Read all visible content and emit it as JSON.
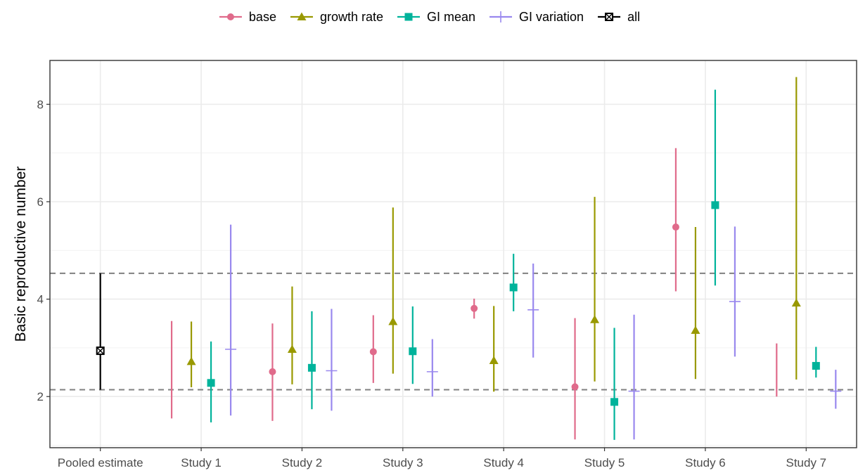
{
  "chart_data": {
    "type": "scatter",
    "title": "",
    "xlabel": "",
    "ylabel": "Basic reproductive number",
    "categories": [
      "Pooled estimate",
      "Study 1",
      "Study 2",
      "Study 3",
      "Study 4",
      "Study 5",
      "Study 6",
      "Study 7"
    ],
    "ylim": [
      0.95,
      8.9
    ],
    "yticks": [
      2,
      4,
      6,
      8
    ],
    "grid": true,
    "legend_position": "top",
    "reference_lines": [
      2.14,
      4.53
    ],
    "series": [
      {
        "name": "base",
        "color": "#e06b8b",
        "marker": "circle",
        "points": [
          {
            "category": "Study 1",
            "lower": 1.55,
            "upper": 3.55
          },
          {
            "category": "Study 2",
            "value": 2.51,
            "lower": 1.5,
            "upper": 3.5
          },
          {
            "category": "Study 3",
            "value": 2.92,
            "lower": 2.28,
            "upper": 3.67
          },
          {
            "category": "Study 4",
            "value": 3.81,
            "lower": 3.6,
            "upper": 4.01
          },
          {
            "category": "Study 5",
            "value": 2.2,
            "lower": 1.12,
            "upper": 3.61
          },
          {
            "category": "Study 6",
            "value": 5.48,
            "lower": 4.16,
            "upper": 7.1
          },
          {
            "category": "Study 7",
            "lower": 2.0,
            "upper": 3.09
          }
        ]
      },
      {
        "name": "growth rate",
        "color": "#999900",
        "marker": "triangle",
        "points": [
          {
            "category": "Study 1",
            "value": 2.72,
            "lower": 2.19,
            "upper": 3.54
          },
          {
            "category": "Study 2",
            "value": 2.97,
            "lower": 2.25,
            "upper": 4.26
          },
          {
            "category": "Study 3",
            "value": 3.54,
            "lower": 2.47,
            "upper": 5.88
          },
          {
            "category": "Study 4",
            "value": 2.74,
            "lower": 2.1,
            "upper": 3.86
          },
          {
            "category": "Study 5",
            "value": 3.58,
            "lower": 2.31,
            "upper": 6.1
          },
          {
            "category": "Study 6",
            "value": 3.36,
            "lower": 2.36,
            "upper": 5.48
          },
          {
            "category": "Study 7",
            "value": 3.92,
            "lower": 2.35,
            "upper": 8.56
          }
        ]
      },
      {
        "name": "GI mean",
        "color": "#00b39b",
        "marker": "square",
        "points": [
          {
            "category": "Study 1",
            "value": 2.28,
            "lower": 1.47,
            "upper": 3.13
          },
          {
            "category": "Study 2",
            "value": 2.59,
            "lower": 1.74,
            "upper": 3.75
          },
          {
            "category": "Study 3",
            "value": 2.93,
            "lower": 2.26,
            "upper": 3.85
          },
          {
            "category": "Study 4",
            "value": 4.24,
            "lower": 3.75,
            "upper": 4.93
          },
          {
            "category": "Study 5",
            "value": 1.89,
            "lower": 1.11,
            "upper": 3.41
          },
          {
            "category": "Study 6",
            "value": 5.93,
            "lower": 4.28,
            "upper": 8.3
          },
          {
            "category": "Study 7",
            "value": 2.63,
            "lower": 2.39,
            "upper": 3.02
          }
        ]
      },
      {
        "name": "GI variation",
        "color": "#9988ee",
        "marker": "plus",
        "points": [
          {
            "category": "Study 1",
            "value": 2.97,
            "lower": 1.61,
            "upper": 5.53
          },
          {
            "category": "Study 2",
            "value": 2.53,
            "lower": 1.71,
            "upper": 3.8
          },
          {
            "category": "Study 3",
            "value": 2.51,
            "lower": 2.0,
            "upper": 3.18
          },
          {
            "category": "Study 4",
            "value": 3.78,
            "lower": 2.8,
            "upper": 4.73
          },
          {
            "category": "Study 5",
            "value": 2.11,
            "lower": 1.12,
            "upper": 3.68
          },
          {
            "category": "Study 6",
            "value": 3.95,
            "lower": 2.82,
            "upper": 5.49
          },
          {
            "category": "Study 7",
            "value": 2.11,
            "lower": 1.75,
            "upper": 2.55
          }
        ]
      },
      {
        "name": "all",
        "color": "#000000",
        "marker": "square-cross",
        "points": [
          {
            "category": "Pooled estimate",
            "value": 2.94,
            "lower": 2.14,
            "upper": 4.53
          }
        ]
      }
    ]
  }
}
